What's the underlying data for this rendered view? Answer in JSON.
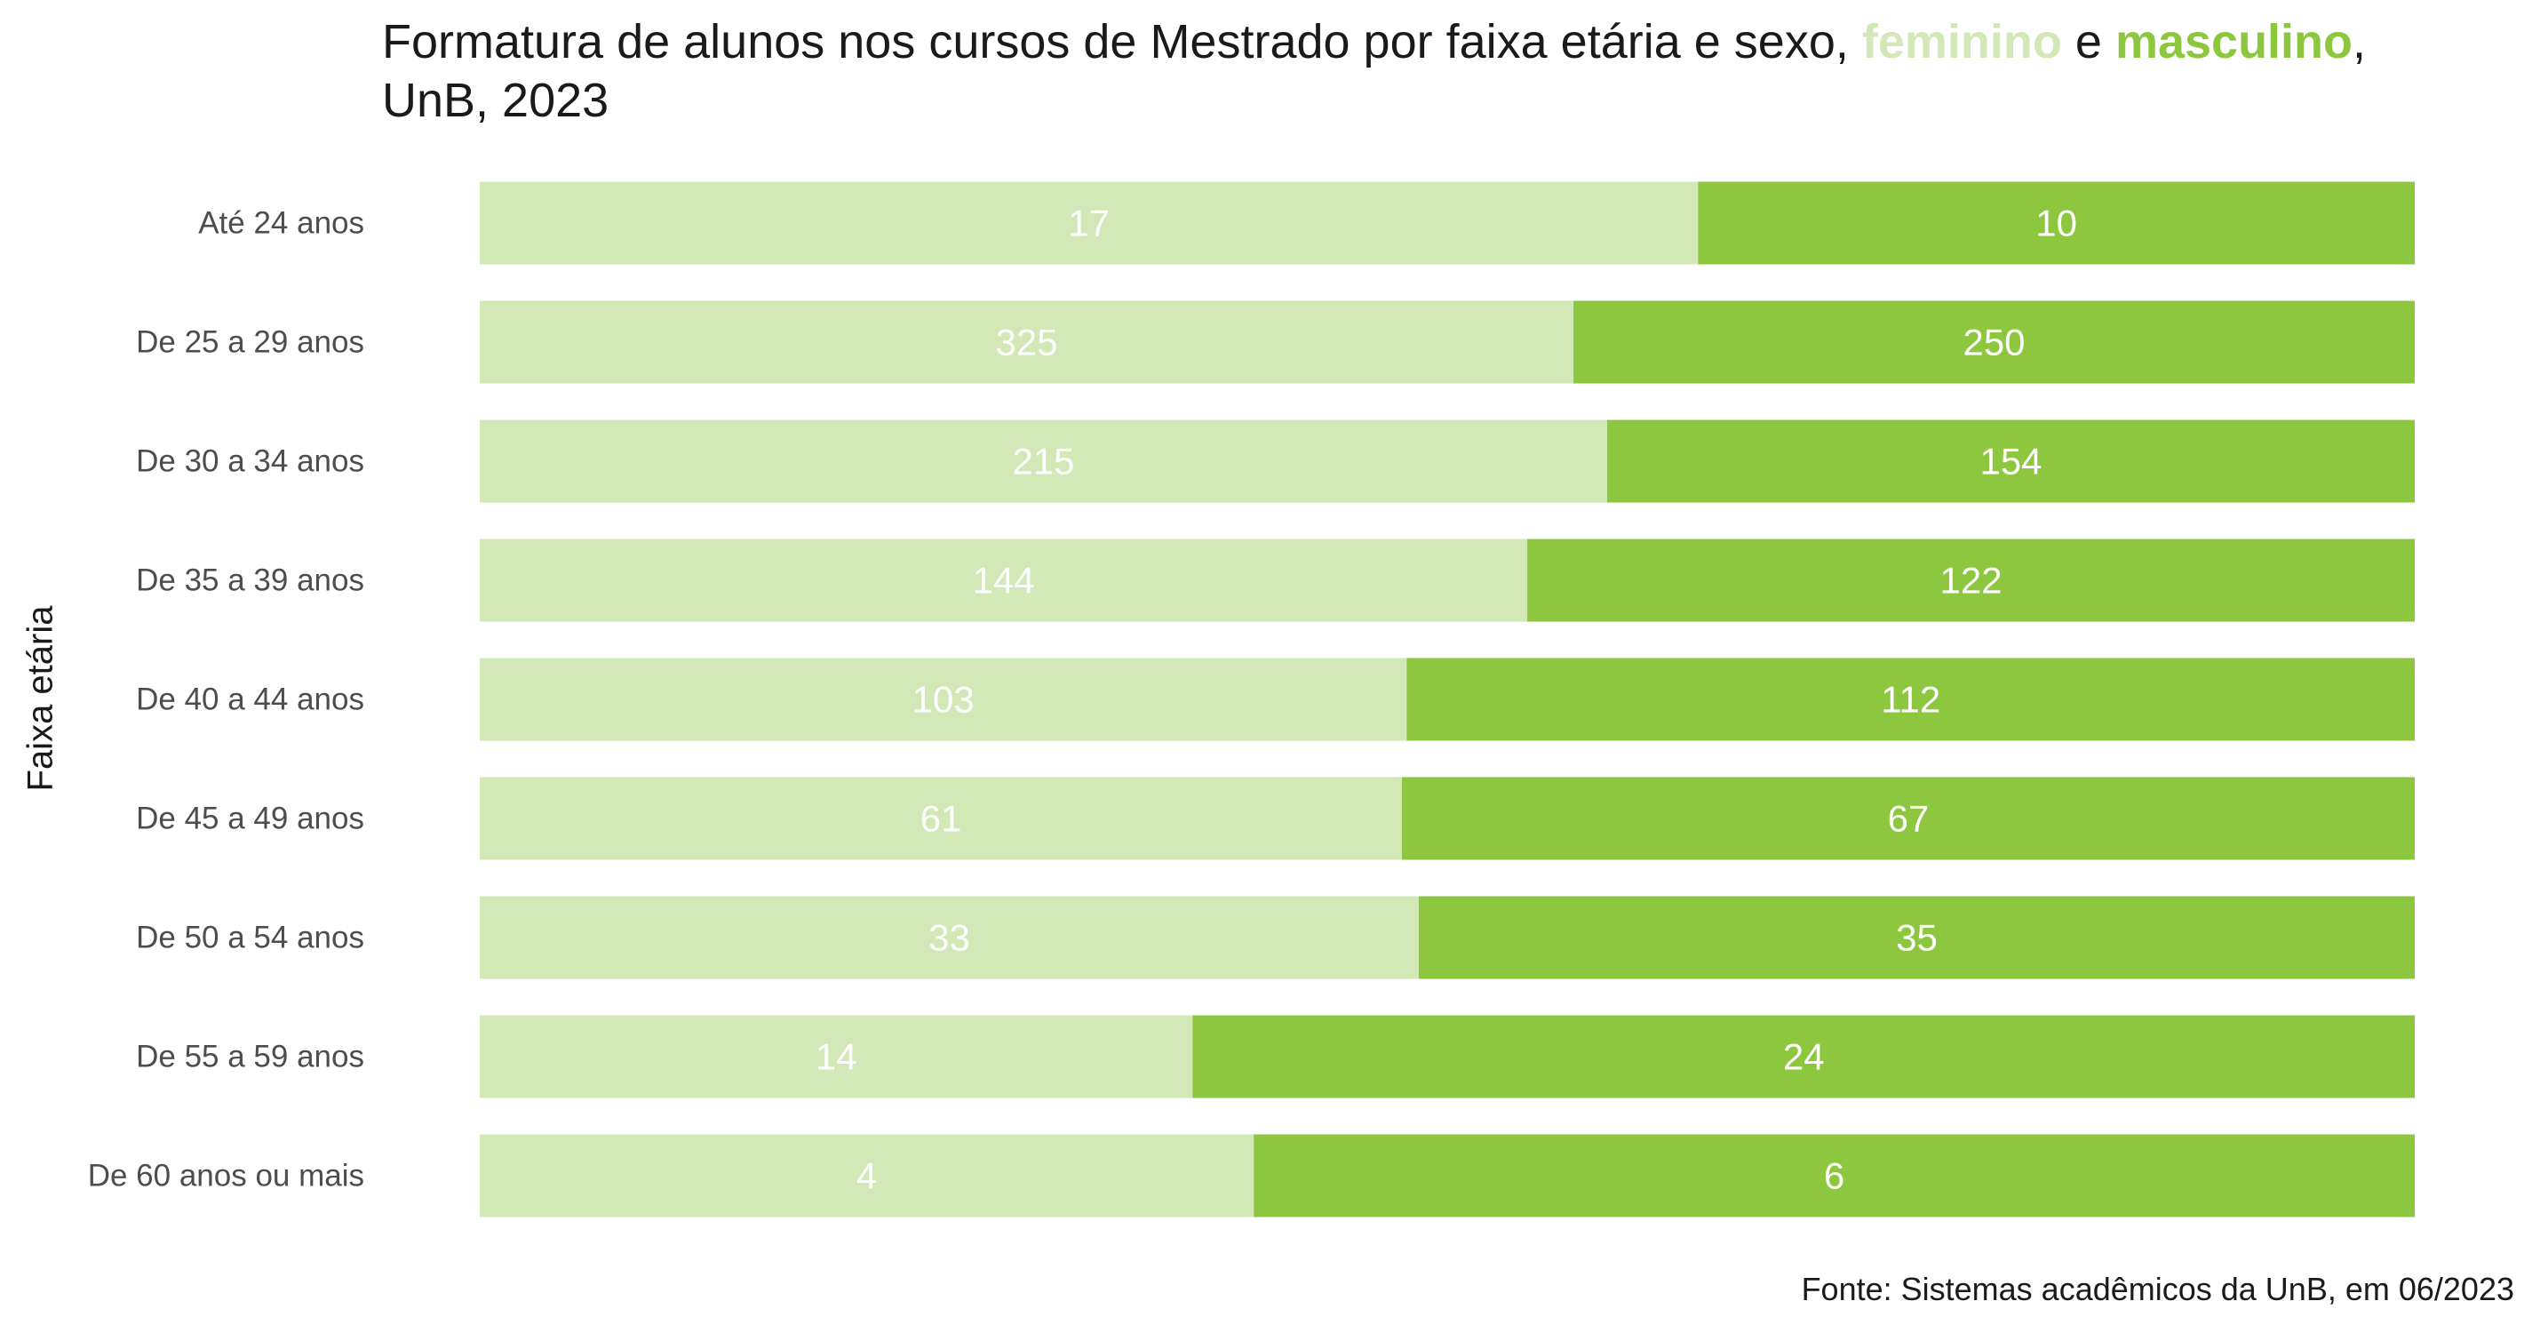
{
  "chart_data": {
    "type": "bar",
    "orientation": "horizontal",
    "stacked": "percent",
    "title_main": "Formatura de alunos nos cursos de Mestrado por faixa etária e sexo,",
    "title_fem": "feminino",
    "title_and": "e",
    "title_masc": "masculino",
    "title_comma": ",",
    "title_line2": "UnB, 2023",
    "ylabel": "Faixa etária",
    "xlabel": "",
    "caption": "Fonte: Sistemas acadêmicos da UnB, em 06/2023",
    "legend": "none (colors in title)",
    "grid": false,
    "categories": [
      "Até 24 anos",
      "De 25 a 29 anos",
      "De 30 a 34 anos",
      "De 35 a 39 anos",
      "De 40 a 44 anos",
      "De 45 a 49 anos",
      "De 50 a 54 anos",
      "De 55 a 59 anos",
      "De 60 anos ou mais"
    ],
    "series": [
      {
        "name": "feminino",
        "color": "#d2e8b6",
        "values": [
          17,
          325,
          215,
          144,
          103,
          61,
          33,
          14,
          4
        ]
      },
      {
        "name": "masculino",
        "color": "#8dc63f",
        "values": [
          10,
          250,
          154,
          122,
          112,
          67,
          35,
          24,
          6
        ]
      }
    ]
  }
}
